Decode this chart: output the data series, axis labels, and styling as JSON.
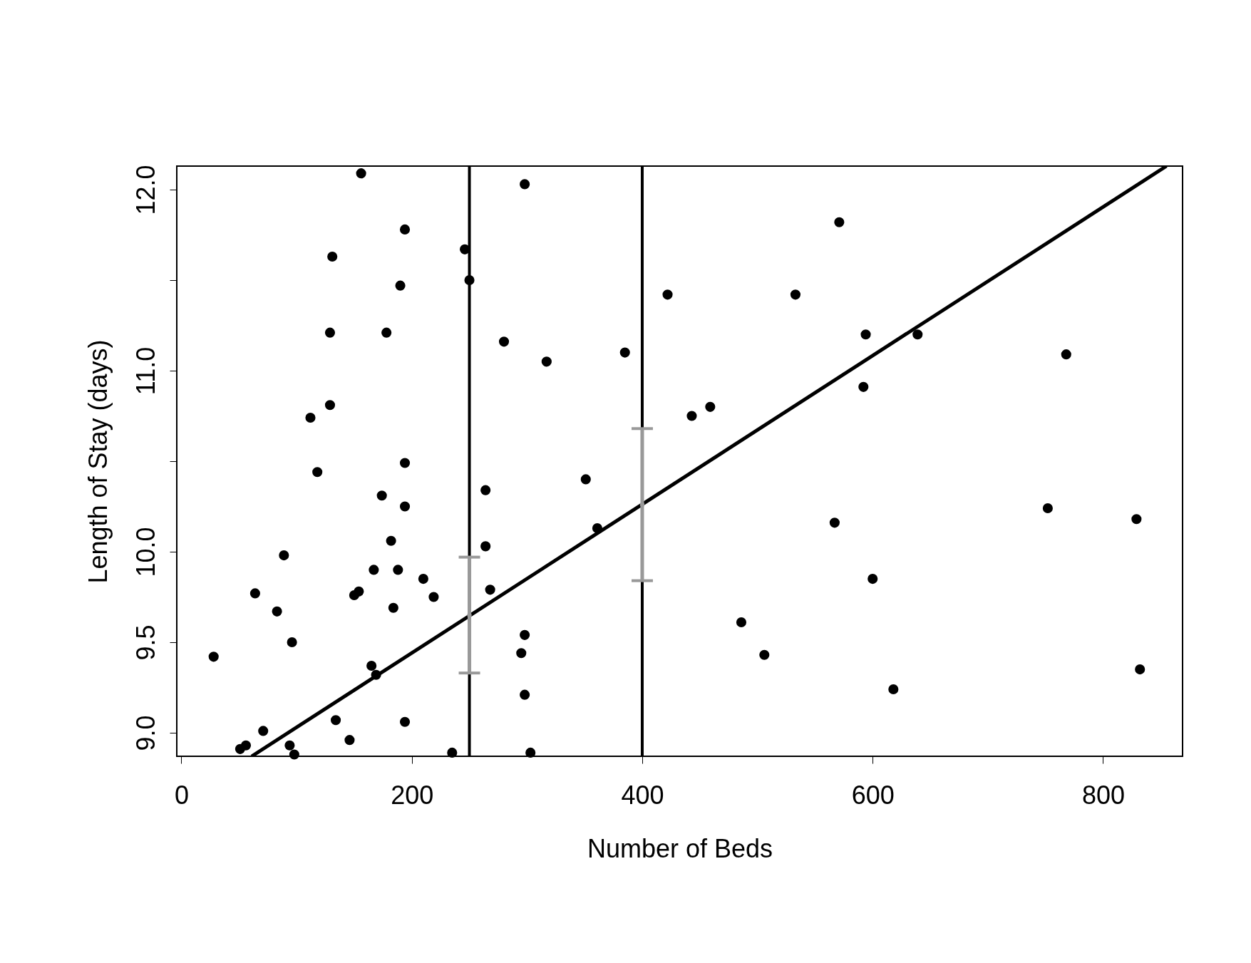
{
  "chart_data": {
    "type": "scatter",
    "xlabel": "Number of Beds",
    "ylabel": "Length of Stay (days)",
    "xlim": [
      -4,
      869
    ],
    "ylim": [
      8.87,
      12.13
    ],
    "xticks": [
      0,
      200,
      400,
      600,
      800
    ],
    "yticks": [
      {
        "value": 9,
        "label": "9.0"
      },
      {
        "value": 9.5,
        "label": "9.5"
      },
      {
        "value": 10,
        "label": "10.0"
      },
      {
        "value": 10.5,
        "label": null
      },
      {
        "value": 11,
        "label": "11.0"
      },
      {
        "value": 11.5,
        "label": null
      },
      {
        "value": 12,
        "label": "12.0"
      }
    ],
    "series": [
      {
        "marker": "circle",
        "color": "#000000",
        "x": [
          156,
          298,
          194,
          571,
          131,
          246,
          250,
          190,
          422,
          533,
          129,
          178,
          280,
          594,
          639,
          385,
          317,
          768,
          592,
          129,
          112,
          443,
          459,
          118,
          194,
          351,
          174,
          264,
          194,
          752,
          567,
          829,
          361,
          182,
          264,
          89,
          167,
          188,
          210,
          600,
          64,
          150,
          154,
          219,
          268,
          83,
          184,
          96,
          486,
          298,
          28,
          295,
          506,
          165,
          169,
          832,
          618,
          298,
          134,
          194,
          71,
          146,
          94,
          56,
          51,
          98,
          235,
          303
        ],
        "values": [
          12.09,
          12.03,
          11.78,
          11.82,
          11.63,
          11.67,
          11.5,
          11.47,
          11.42,
          11.42,
          11.21,
          11.21,
          11.16,
          11.2,
          11.2,
          11.1,
          11.05,
          11.09,
          10.91,
          10.81,
          10.74,
          10.75,
          10.8,
          10.44,
          10.49,
          10.4,
          10.31,
          10.34,
          10.25,
          10.24,
          10.16,
          10.18,
          10.13,
          10.06,
          10.03,
          9.98,
          9.9,
          9.9,
          9.85,
          9.85,
          9.77,
          9.76,
          9.78,
          9.75,
          9.79,
          9.67,
          9.69,
          9.5,
          9.61,
          9.54,
          9.42,
          9.44,
          9.43,
          9.37,
          9.32,
          9.35,
          9.24,
          9.21,
          9.07,
          9.06,
          9.01,
          8.96,
          8.93,
          8.93,
          8.91,
          8.88,
          8.89,
          8.89
        ]
      },
      {
        "type": "line",
        "color": "#000000",
        "x": [
          61,
          855
        ],
        "values": [
          8.87,
          12.13
        ]
      },
      {
        "type": "scatter",
        "color": "#999999",
        "x": [
          250,
          400
        ],
        "values": [
          9.65,
          10.26
        ],
        "errors": [
          [
            9.33,
            9.97
          ],
          [
            9.84,
            10.68
          ]
        ]
      }
    ],
    "ref_lines": [
      {
        "axis": "x",
        "value": 250,
        "color": "#000000"
      },
      {
        "axis": "x",
        "value": 400,
        "color": "#000000"
      }
    ]
  }
}
